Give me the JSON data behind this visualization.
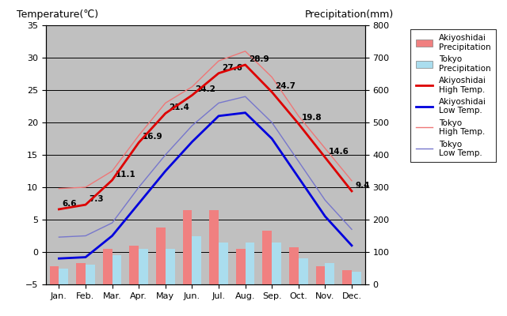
{
  "months": [
    "Jan.",
    "Feb.",
    "Mar.",
    "Apr.",
    "May",
    "Jun.",
    "Jul.",
    "Aug.",
    "Sep.",
    "Oct.",
    "Nov.",
    "Dec."
  ],
  "akiyoshidai_high": [
    6.6,
    7.3,
    11.1,
    16.9,
    21.4,
    24.2,
    27.6,
    28.9,
    24.7,
    19.8,
    14.6,
    9.4
  ],
  "akiyoshidai_low": [
    -1.0,
    -0.8,
    2.5,
    7.5,
    12.5,
    17.0,
    21.0,
    21.5,
    17.5,
    11.5,
    5.5,
    1.0
  ],
  "tokyo_high": [
    9.8,
    10.0,
    12.5,
    18.0,
    23.0,
    25.5,
    29.5,
    31.0,
    27.0,
    21.0,
    16.0,
    11.0
  ],
  "tokyo_low": [
    2.3,
    2.5,
    4.5,
    10.0,
    15.0,
    19.5,
    23.0,
    24.0,
    20.0,
    14.0,
    8.0,
    3.5
  ],
  "akiyoshidai_precip_mm": [
    55,
    65,
    110,
    120,
    175,
    230,
    230,
    110,
    165,
    115,
    55,
    45
  ],
  "tokyo_precip_mm": [
    50,
    60,
    90,
    110,
    110,
    150,
    130,
    130,
    130,
    80,
    65,
    38
  ],
  "temp_ylim": [
    -5,
    35
  ],
  "precip_ylim": [
    0,
    800
  ],
  "title_left": "Temperature(℃)",
  "title_right": "Precipitation(mm)",
  "akiyoshidai_high_color": "#dd0000",
  "akiyoshidai_low_color": "#0000dd",
  "tokyo_high_color": "#ee7777",
  "tokyo_low_color": "#7777cc",
  "akiyoshidai_precip_color": "#f08080",
  "tokyo_precip_color": "#aaddee",
  "bg_color": "#c0c0c0",
  "grid_color": "#000000",
  "legend_labels": [
    "Akiyoshidai\nPrecipitation",
    "Tokyo\nPrecipitation",
    "Akiyoshidai\nHigh Temp.",
    "Akiyoshidai\nLow Temp.",
    "Tokyo\nHigh Temp.",
    "Tokyo\nLow Temp."
  ]
}
